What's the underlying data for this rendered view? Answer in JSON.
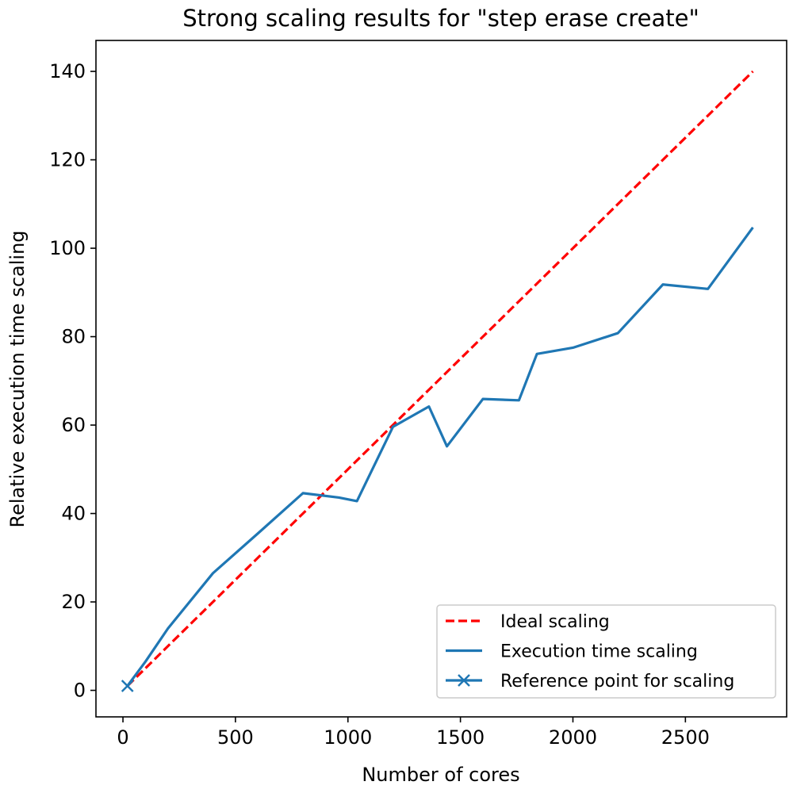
{
  "chart_data": {
    "type": "line",
    "title": "Strong scaling results for \"step erase create\"",
    "xlabel": "Number of cores",
    "ylabel": "Relative execution time scaling",
    "xlim": [
      -120,
      2950
    ],
    "ylim": [
      -6,
      147
    ],
    "xticks": [
      0,
      500,
      1000,
      1500,
      2000,
      2500
    ],
    "yticks": [
      0,
      20,
      40,
      60,
      80,
      100,
      120,
      140
    ],
    "grid": false,
    "legend_position": "lower-right",
    "series": [
      {
        "name": "Ideal scaling",
        "color": "#ff0000",
        "style": "dashed",
        "x": [
          20,
          2800
        ],
        "y": [
          1,
          140
        ]
      },
      {
        "name": "Execution time scaling",
        "color": "#1f77b4",
        "style": "solid",
        "x": [
          20,
          100,
          200,
          400,
          600,
          800,
          960,
          1040,
          1200,
          1360,
          1440,
          1600,
          1760,
          1840,
          2000,
          2200,
          2400,
          2600,
          2800
        ],
        "y": [
          1,
          6.5,
          14,
          26.5,
          35.5,
          44.6,
          43.6,
          42.8,
          59.6,
          64.2,
          55.2,
          65.9,
          65.6,
          76.1,
          77.5,
          80.8,
          91.8,
          90.8,
          104.7
        ]
      },
      {
        "name": "Reference point for scaling",
        "color": "#1f77b4",
        "style": "marker-x",
        "x": [
          20
        ],
        "y": [
          1
        ]
      }
    ]
  }
}
